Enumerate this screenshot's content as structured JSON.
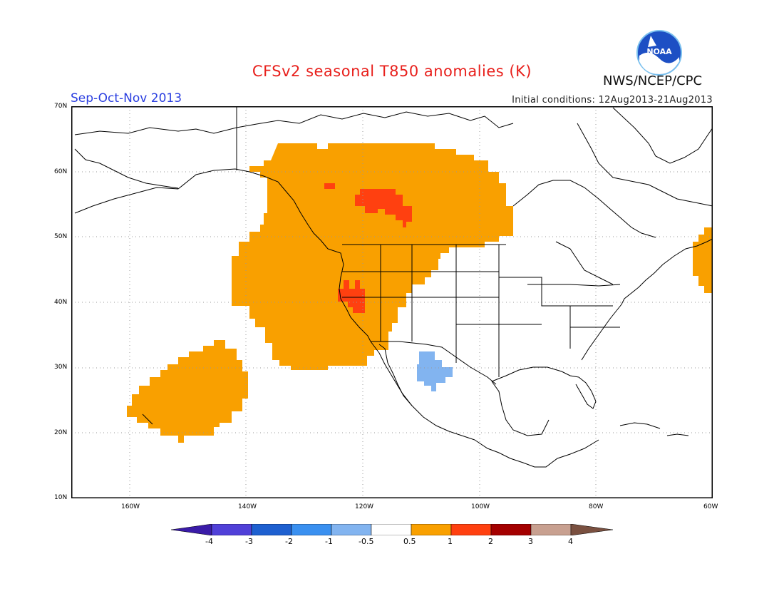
{
  "header": {
    "title": "CFSv2 seasonal T850 anomalies (K)",
    "season": "Sep-Oct-Nov 2013",
    "initial_conditions": "Initial conditions: 12Aug2013-21Aug2013",
    "agency": "NWS/NCEP/CPC",
    "logo_text": "NOAA"
  },
  "map": {
    "lat_labels": [
      "70N",
      "60N",
      "50N",
      "40N",
      "30N",
      "20N",
      "10N"
    ],
    "lon_labels": [
      "160W",
      "140W",
      "120W",
      "100W",
      "80W",
      "60W"
    ],
    "lon_range": [
      -170,
      -60
    ],
    "lat_range": [
      10,
      70
    ],
    "regions": [
      {
        "name": "northwest-warm-anomaly",
        "category": "0.5 to 1",
        "color": "#f9a000"
      },
      {
        "name": "canada-strong-warm-anomaly",
        "category": "1 to 2",
        "color": "#ff4010"
      },
      {
        "name": "california-strong-warm-anomaly",
        "category": "1 to 2",
        "color": "#ff4010"
      },
      {
        "name": "hawaii-pacific-warm-anomaly",
        "category": "0.5 to 1",
        "color": "#f9a000"
      },
      {
        "name": "atlantic-warm-anomaly",
        "category": "0.5 to 1",
        "color": "#f9a000"
      },
      {
        "name": "mexico-cold-anomaly",
        "category": "-1 to -0.5",
        "color": "#82b4f0"
      }
    ]
  },
  "legend": {
    "labels": [
      "-4",
      "-3",
      "-2",
      "-1",
      "-0.5",
      "0.5",
      "1",
      "2",
      "3",
      "4"
    ],
    "colors": [
      "#3a1ba8",
      "#5040d8",
      "#1e60d0",
      "#3a90f0",
      "#82b4f0",
      "#ffffff",
      "#f9a000",
      "#ff4010",
      "#a40000",
      "#c8a090",
      "#7a5040"
    ]
  }
}
